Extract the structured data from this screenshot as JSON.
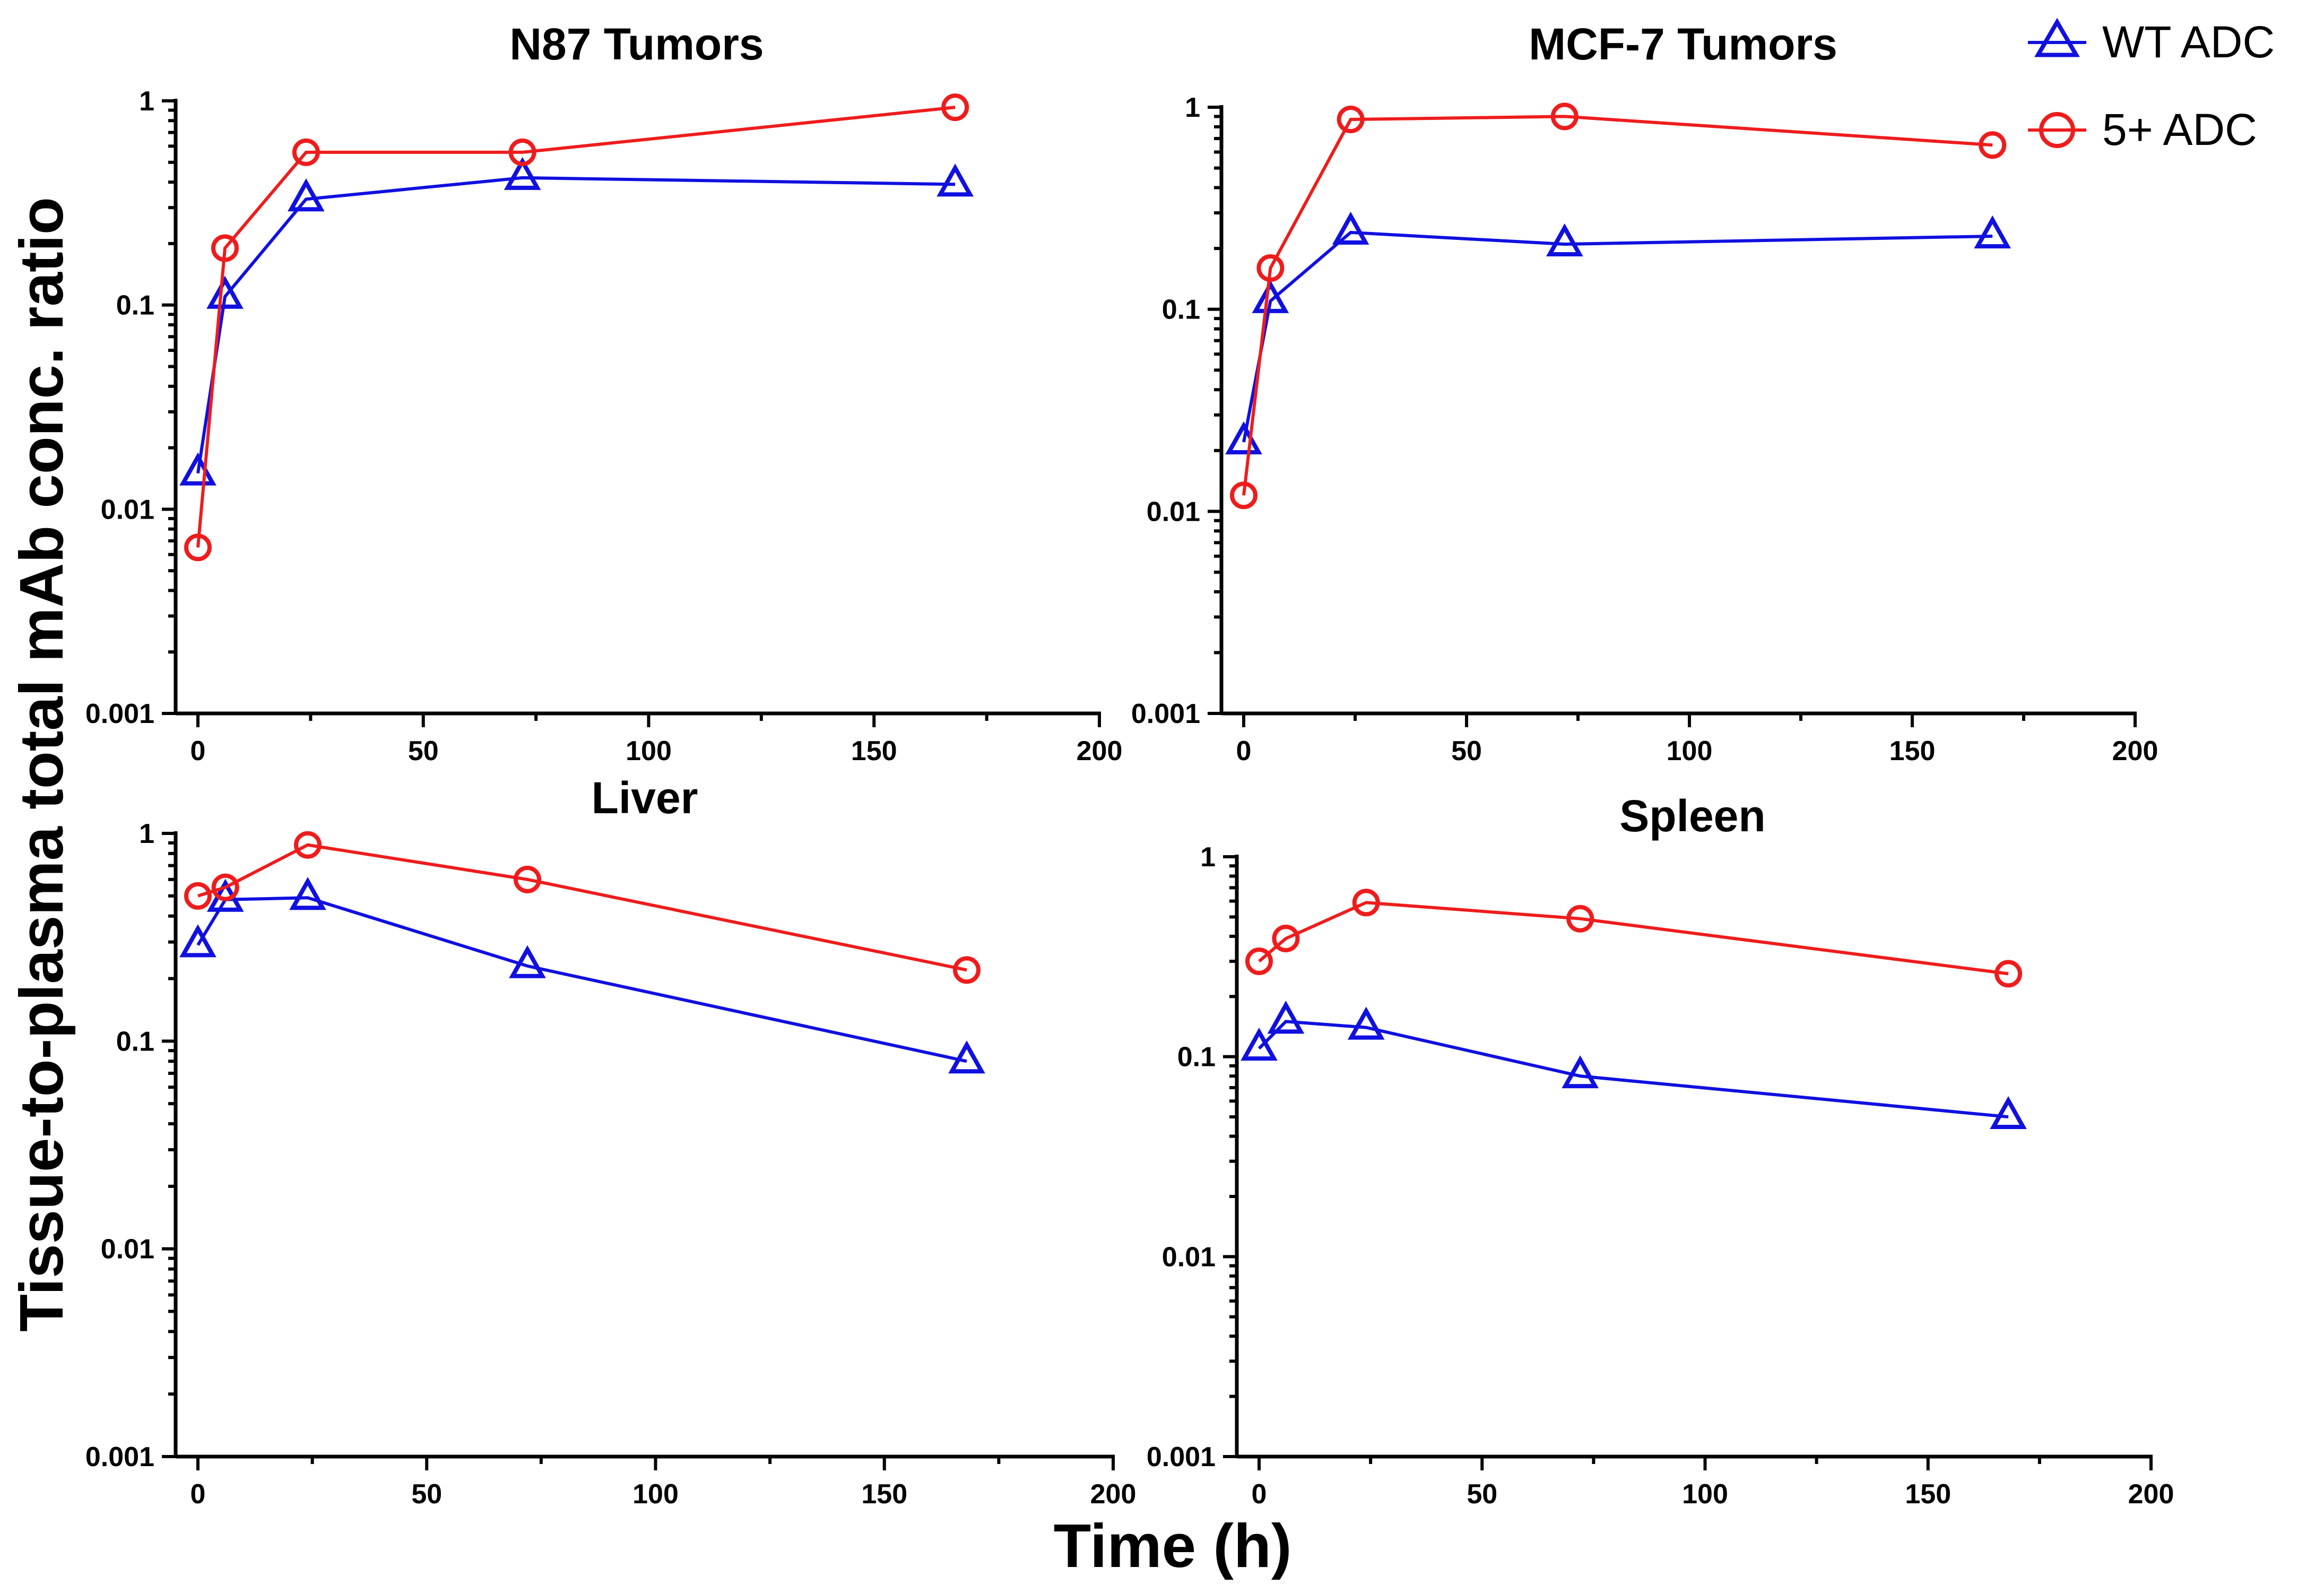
{
  "figure": {
    "ylabel": "Tissue-to-plasma total mAb conc. ratio",
    "xlabel": "Time (h)"
  },
  "legend": [
    {
      "name": "WT ADC",
      "color": "#1010e0",
      "marker": "triangle"
    },
    {
      "name": "5+ ADC",
      "color": "#ee1c1c",
      "marker": "circle"
    }
  ],
  "chart_data": [
    {
      "type": "line",
      "title": "N87 Tumors",
      "xlabel": "",
      "ylabel": "",
      "xlim": [
        0,
        200
      ],
      "ylim": [
        0.001,
        1
      ],
      "yscale": "log",
      "xticks": [
        0,
        50,
        100,
        150,
        200
      ],
      "yticks": [
        0.001,
        0.01,
        0.1,
        1
      ],
      "yticklabels": [
        "0.001",
        "0.01",
        "0.1",
        "1"
      ],
      "grid": false,
      "series": [
        {
          "name": "WT ADC",
          "x": [
            0,
            6,
            24,
            72,
            168
          ],
          "y": [
            0.015,
            0.11,
            0.33,
            0.42,
            0.39
          ]
        },
        {
          "name": "5+ ADC",
          "x": [
            0,
            6,
            24,
            72,
            168
          ],
          "y": [
            0.0065,
            0.19,
            0.56,
            0.56,
            0.93
          ]
        }
      ]
    },
    {
      "type": "line",
      "title": "MCF-7 Tumors",
      "xlabel": "",
      "ylabel": "",
      "xlim": [
        0,
        200
      ],
      "ylim": [
        0.001,
        1
      ],
      "yscale": "log",
      "xticks": [
        0,
        50,
        100,
        150,
        200
      ],
      "yticks": [
        0.001,
        0.01,
        0.1,
        1
      ],
      "yticklabels": [
        "0.001",
        "0.01",
        "0.1",
        "1"
      ],
      "grid": false,
      "series": [
        {
          "name": "WT ADC",
          "x": [
            0,
            6,
            24,
            72,
            168
          ],
          "y": [
            0.022,
            0.11,
            0.24,
            0.21,
            0.23
          ]
        },
        {
          "name": "5+ ADC",
          "x": [
            0,
            6,
            24,
            72,
            168
          ],
          "y": [
            0.012,
            0.16,
            0.87,
            0.9,
            0.65
          ]
        }
      ]
    },
    {
      "type": "line",
      "title": "Liver",
      "xlabel": "",
      "ylabel": "",
      "xlim": [
        0,
        200
      ],
      "ylim": [
        0.001,
        1
      ],
      "yscale": "log",
      "xticks": [
        0,
        50,
        100,
        150,
        200
      ],
      "yticks": [
        0.001,
        0.01,
        0.1,
        1
      ],
      "yticklabels": [
        "0.001",
        "0.01",
        "0.1",
        "1"
      ],
      "grid": false,
      "series": [
        {
          "name": "WT ADC",
          "x": [
            0,
            6,
            24,
            72,
            168
          ],
          "y": [
            0.29,
            0.48,
            0.49,
            0.23,
            0.08
          ]
        },
        {
          "name": "5+ ADC",
          "x": [
            0,
            6,
            24,
            72,
            168
          ],
          "y": [
            0.5,
            0.55,
            0.88,
            0.6,
            0.22
          ]
        }
      ]
    },
    {
      "type": "line",
      "title": "Spleen",
      "xlabel": "",
      "ylabel": "",
      "xlim": [
        0,
        200
      ],
      "ylim": [
        0.001,
        1
      ],
      "yscale": "log",
      "xticks": [
        0,
        50,
        100,
        150,
        200
      ],
      "yticks": [
        0.001,
        0.01,
        0.1,
        1
      ],
      "yticklabels": [
        "0.001",
        "0.01",
        "0.1",
        "1"
      ],
      "grid": false,
      "series": [
        {
          "name": "WT ADC",
          "x": [
            0,
            6,
            24,
            72,
            168
          ],
          "y": [
            0.11,
            0.15,
            0.14,
            0.08,
            0.05
          ]
        },
        {
          "name": "5+ ADC",
          "x": [
            0,
            6,
            24,
            72,
            168
          ],
          "y": [
            0.3,
            0.39,
            0.59,
            0.49,
            0.26
          ]
        }
      ]
    }
  ]
}
